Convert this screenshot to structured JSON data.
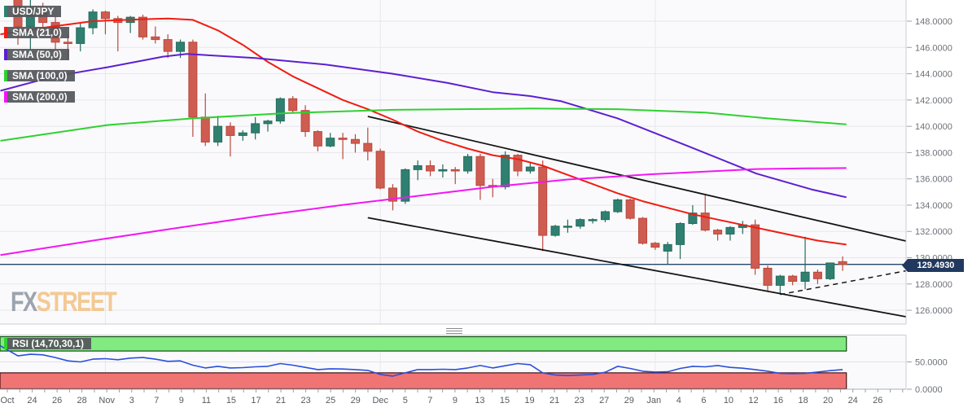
{
  "legend": {
    "symbol": "USD/JPY",
    "sma21": "SMA (21,0)",
    "sma50": "SMA (50,0)",
    "sma100": "SMA (100,0)",
    "sma200": "SMA (200,0)",
    "rsi": "RSI (14,70,30,1)"
  },
  "watermark": {
    "fx": "FX",
    "street": "STREET"
  },
  "price_tag": {
    "value": "129.4930",
    "color": "#21395f"
  },
  "chart_data": {
    "type": "candlestick",
    "symbol": "USD/JPY",
    "title": "USD/JPY daily candles with SMA(21/50/100/200), descending channel and RSI(14)",
    "up_color": "#2f8071",
    "up_border": "#256b5d",
    "down_color": "#cf5c50",
    "down_border": "#b9483e",
    "current_price": 129.493,
    "current_price_line_color": "#26456b",
    "price_axis": {
      "labels": [
        "148.0000",
        "146.0000",
        "144.0000",
        "142.0000",
        "140.0000",
        "138.0000",
        "136.0000",
        "134.0000",
        "132.0000",
        "130.0000",
        "128.0000",
        "126.0000"
      ],
      "values": [
        148,
        146,
        144,
        142,
        140,
        138,
        136,
        134,
        132,
        130,
        128,
        126
      ],
      "min": 126,
      "max": 148,
      "step": 2
    },
    "x_labels": [
      "Oct",
      "24",
      "26",
      "28",
      "Nov",
      "3",
      "7",
      "9",
      "11",
      "15",
      "17",
      "21",
      "23",
      "25",
      "29",
      "Dec",
      "5",
      "7",
      "9",
      "13",
      "15",
      "19",
      "21",
      "23",
      "27",
      "29",
      "Jan",
      "4",
      "6",
      "10",
      "12",
      "16",
      "18",
      "20",
      "24",
      "26"
    ],
    "month_boundary_indices": [
      7,
      29,
      51
    ],
    "candles": [
      [
        150.1,
        151.9,
        146.2,
        147.6
      ],
      [
        147.6,
        149.7,
        145.6,
        148.9
      ],
      [
        148.9,
        149.4,
        147.5,
        147.9
      ],
      [
        147.9,
        148.4,
        145.1,
        146.4
      ],
      [
        146.4,
        147.0,
        145.1,
        146.3
      ],
      [
        146.3,
        147.9,
        145.7,
        147.5
      ],
      [
        147.5,
        148.9,
        147.0,
        148.7
      ],
      [
        148.7,
        148.8,
        147.0,
        148.2
      ],
      [
        148.2,
        148.4,
        145.7,
        147.9
      ],
      [
        147.9,
        148.4,
        147.1,
        148.3
      ],
      [
        148.3,
        148.5,
        146.6,
        146.8
      ],
      [
        146.8,
        147.6,
        146.3,
        146.6
      ],
      [
        146.6,
        147.0,
        145.2,
        145.7
      ],
      [
        145.7,
        146.6,
        145.2,
        146.4
      ],
      [
        146.4,
        146.6,
        139.2,
        140.7
      ],
      [
        140.7,
        142.5,
        138.5,
        138.8
      ],
      [
        138.8,
        140.8,
        138.5,
        140.0
      ],
      [
        140.0,
        140.3,
        137.7,
        139.3
      ],
      [
        139.3,
        139.7,
        138.9,
        139.5
      ],
      [
        139.5,
        140.7,
        139.0,
        140.2
      ],
      [
        140.2,
        140.5,
        139.6,
        140.4
      ],
      [
        140.4,
        142.2,
        140.2,
        142.1
      ],
      [
        142.1,
        142.3,
        141.0,
        141.2
      ],
      [
        141.2,
        141.6,
        139.2,
        139.6
      ],
      [
        139.6,
        139.7,
        138.1,
        138.5
      ],
      [
        138.5,
        139.5,
        138.4,
        139.1
      ],
      [
        139.1,
        139.5,
        137.5,
        139.0
      ],
      [
        139.0,
        139.4,
        138.0,
        138.7
      ],
      [
        138.7,
        139.9,
        137.4,
        138.1
      ],
      [
        138.1,
        138.3,
        135.2,
        135.3
      ],
      [
        135.3,
        135.6,
        133.6,
        134.3
      ],
      [
        134.3,
        136.8,
        134.1,
        136.7
      ],
      [
        136.7,
        137.4,
        135.9,
        137.0
      ],
      [
        137.0,
        137.4,
        136.2,
        136.6
      ],
      [
        136.6,
        137.1,
        136.1,
        136.7
      ],
      [
        136.7,
        136.9,
        135.6,
        136.6
      ],
      [
        136.6,
        137.9,
        136.4,
        137.7
      ],
      [
        137.7,
        137.9,
        134.4,
        135.5
      ],
      [
        135.5,
        136.0,
        134.6,
        135.4
      ],
      [
        135.4,
        138.1,
        135.2,
        137.8
      ],
      [
        137.8,
        137.9,
        136.2,
        136.6
      ],
      [
        136.6,
        137.3,
        136.4,
        136.9
      ],
      [
        136.9,
        137.4,
        130.5,
        131.7
      ],
      [
        131.7,
        132.5,
        131.6,
        132.4
      ],
      [
        132.35,
        132.9,
        131.9,
        132.4
      ],
      [
        132.4,
        133.0,
        132.2,
        132.9
      ],
      [
        132.9,
        133.0,
        132.6,
        132.9
      ],
      [
        132.9,
        133.6,
        132.7,
        133.5
      ],
      [
        133.5,
        134.5,
        133.4,
        134.4
      ],
      [
        134.4,
        134.5,
        132.9,
        133.0
      ],
      [
        133.0,
        133.1,
        131.0,
        131.1
      ],
      [
        131.1,
        131.2,
        130.6,
        130.8
      ],
      [
        130.5,
        131.2,
        129.5,
        131.0
      ],
      [
        131.0,
        132.7,
        129.9,
        132.6
      ],
      [
        132.6,
        134.0,
        132.5,
        133.4
      ],
      [
        133.4,
        134.8,
        132.0,
        132.1
      ],
      [
        132.1,
        132.2,
        131.3,
        131.8
      ],
      [
        131.8,
        132.4,
        131.3,
        132.3
      ],
      [
        132.3,
        132.8,
        131.8,
        132.5
      ],
      [
        132.5,
        132.9,
        128.7,
        129.2
      ],
      [
        129.2,
        129.4,
        127.5,
        127.9
      ],
      [
        127.9,
        128.7,
        127.2,
        128.6
      ],
      [
        128.6,
        128.7,
        127.9,
        128.2
      ],
      [
        128.2,
        131.6,
        127.6,
        128.9
      ],
      [
        128.9,
        129.1,
        128.0,
        128.4
      ],
      [
        128.4,
        129.6,
        128.3,
        129.6
      ],
      [
        129.7,
        130.1,
        129.0,
        129.49
      ]
    ],
    "sma": [
      {
        "name": "SMA 21",
        "color": "#ef1d12",
        "points": [
          [
            -1.4,
            147.0
          ],
          [
            2,
            147.5
          ],
          [
            6,
            148.0
          ],
          [
            10,
            148.15
          ],
          [
            12,
            148.2
          ],
          [
            14,
            148.1
          ],
          [
            16,
            147.3
          ],
          [
            18,
            146.2
          ],
          [
            20,
            144.9
          ],
          [
            22,
            143.8
          ],
          [
            24,
            142.9
          ],
          [
            26,
            142.0
          ],
          [
            28,
            141.3
          ],
          [
            30,
            140.5
          ],
          [
            32,
            139.6
          ],
          [
            34,
            138.9
          ],
          [
            36,
            138.3
          ],
          [
            38,
            137.8
          ],
          [
            40,
            137.5
          ],
          [
            42,
            137.0
          ],
          [
            44,
            136.3
          ],
          [
            46,
            135.6
          ],
          [
            48,
            134.9
          ],
          [
            50,
            134.3
          ],
          [
            52,
            133.8
          ],
          [
            54,
            133.3
          ],
          [
            56,
            132.9
          ],
          [
            58,
            132.5
          ],
          [
            60,
            132.1
          ],
          [
            62,
            131.7
          ],
          [
            64,
            131.3
          ],
          [
            66.3,
            131.0
          ]
        ]
      },
      {
        "name": "SMA 50",
        "color": "#5d1fd0",
        "points": [
          [
            -1.4,
            142.7
          ],
          [
            2.9,
            143.8
          ],
          [
            7.2,
            144.5
          ],
          [
            11.6,
            145.3
          ],
          [
            13.5,
            145.5
          ],
          [
            19,
            145.2
          ],
          [
            24.6,
            144.7
          ],
          [
            30,
            144.0
          ],
          [
            34.4,
            143.3
          ],
          [
            38,
            142.6
          ],
          [
            41,
            142.3
          ],
          [
            43.5,
            141.9
          ],
          [
            48,
            140.6
          ],
          [
            53.6,
            138.5
          ],
          [
            59.1,
            136.4
          ],
          [
            63.5,
            135.2
          ],
          [
            66.3,
            134.6
          ]
        ]
      },
      {
        "name": "SMA 100",
        "color": "#2fd130",
        "points": [
          [
            -1.4,
            138.9
          ],
          [
            7.2,
            140.1
          ],
          [
            14,
            140.6
          ],
          [
            21.4,
            141.0
          ],
          [
            30,
            141.25
          ],
          [
            41,
            141.35
          ],
          [
            48,
            141.3
          ],
          [
            55,
            141.05
          ],
          [
            60,
            140.6
          ],
          [
            66.3,
            140.15
          ]
        ]
      },
      {
        "name": "SMA 200",
        "color": "#f316f3",
        "points": [
          [
            -1.4,
            130.2
          ],
          [
            6,
            131.3
          ],
          [
            13,
            132.3
          ],
          [
            19.5,
            133.2
          ],
          [
            25.9,
            134.0
          ],
          [
            32,
            134.7
          ],
          [
            38,
            135.4
          ],
          [
            44,
            135.95
          ],
          [
            50.7,
            136.35
          ],
          [
            56,
            136.6
          ],
          [
            59.1,
            136.75
          ],
          [
            63,
            136.8
          ],
          [
            66.3,
            136.82
          ]
        ]
      }
    ],
    "trendlines": [
      {
        "name": "channel-top",
        "style": "solid",
        "color": "#141414",
        "points": [
          [
            28,
            140.75
          ],
          [
            71.07,
            131.27
          ]
        ]
      },
      {
        "name": "channel-bottom",
        "style": "solid",
        "color": "#141414",
        "points": [
          [
            28,
            133.04
          ],
          [
            71.07,
            125.51
          ]
        ]
      },
      {
        "name": "rising-support-dashed",
        "style": "dashed",
        "color": "#141414",
        "points": [
          [
            61,
            127.2
          ],
          [
            71.07,
            129.0
          ]
        ]
      }
    ],
    "rsi": {
      "axis_labels": [
        "50.0000",
        "0.0000"
      ],
      "axis_values": [
        50,
        0
      ],
      "overbought": 70,
      "oversold": 30,
      "band_over_color": "#81ea81",
      "band_over_border": "#0e4e0e",
      "band_under_color": "#f17474",
      "band_under_border": "#471212",
      "line_color": "#2b50d9",
      "edge_value": 80,
      "values": [
        61,
        64,
        63,
        58,
        52,
        50,
        55,
        56,
        54,
        57,
        58,
        55,
        51,
        52,
        44,
        39,
        42,
        39,
        39.5,
        41,
        42,
        47,
        44,
        40,
        36,
        37.5,
        37,
        36,
        34.5,
        27,
        24,
        30,
        36,
        36,
        36.5,
        36,
        39,
        43.5,
        39,
        43,
        47,
        45,
        30,
        26,
        25,
        26,
        27,
        31,
        42,
        38,
        33,
        31.5,
        32,
        38,
        42,
        41,
        43.5,
        40,
        38.5,
        36,
        33,
        29,
        28.5,
        29,
        31.5,
        34,
        36
      ]
    }
  }
}
